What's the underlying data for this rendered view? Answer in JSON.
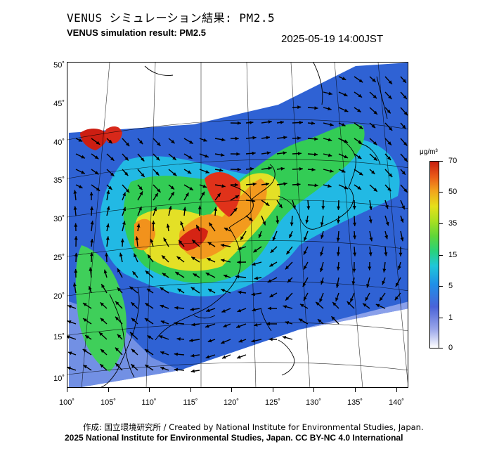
{
  "title": {
    "jp": "VENUS シミュレーション結果: PM2.5",
    "en": "VENUS simulation result: PM2.5",
    "timestamp": "2025-05-19 14:00JST"
  },
  "axes": {
    "lat_labels": [
      "50˚",
      "45˚",
      "40˚",
      "35˚",
      "30˚",
      "25˚",
      "20˚",
      "15˚",
      "10˚"
    ],
    "lon_labels": [
      "100˚",
      "105˚",
      "110˚",
      "115˚",
      "120˚",
      "125˚",
      "130˚",
      "135˚",
      "140˚"
    ]
  },
  "colorbar": {
    "unit": "μg/m³",
    "labels": [
      "70",
      "50",
      "35",
      "15",
      "5",
      "1",
      "0"
    ],
    "colors": [
      "#ffffff",
      "#9aa6ea",
      "#4a63d8",
      "#1f8fe8",
      "#1fc7d9",
      "#28d27a",
      "#5fd639",
      "#a8e020",
      "#e6e01a",
      "#f2a61c",
      "#ea5a18",
      "#c81e10"
    ]
  },
  "credits": {
    "line1": "作成: 国立環境研究所 / Created by National Institute for Environmental Studies, Japan.",
    "line2": "2025 National Institute for Environmental Studies, Japan. CC BY-NC 4.0 International"
  }
}
